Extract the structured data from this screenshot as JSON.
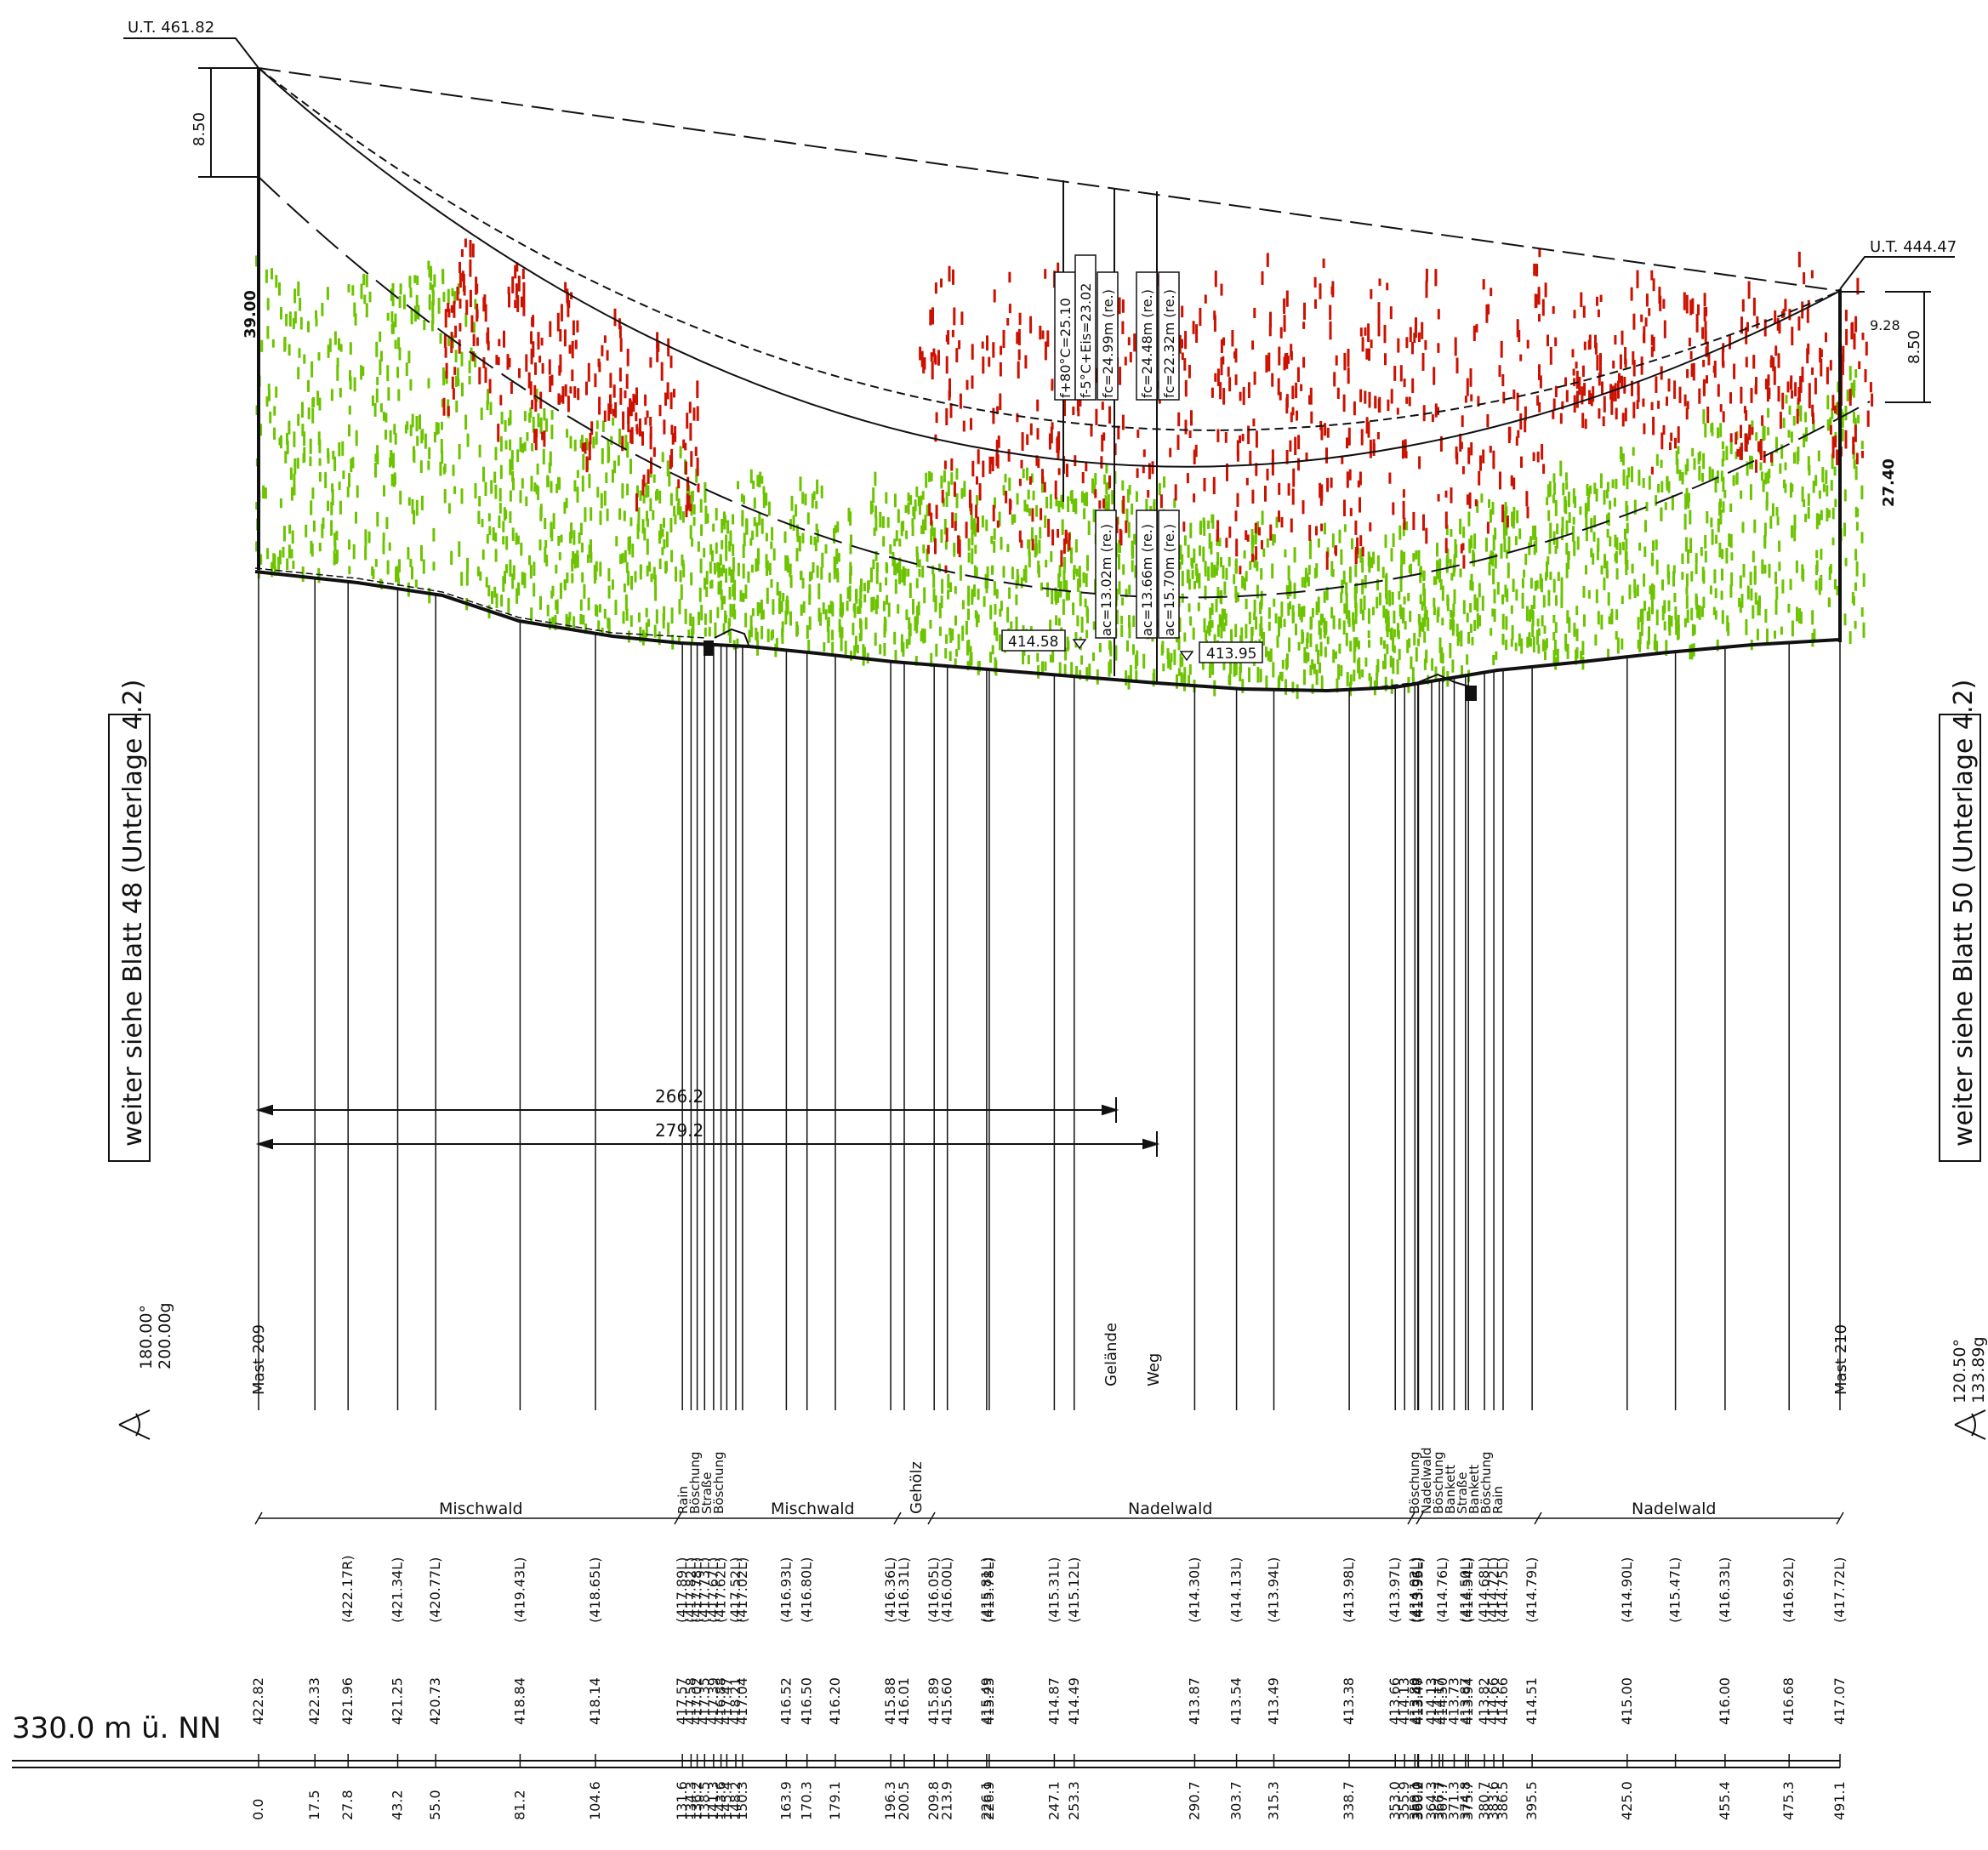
{
  "masts": {
    "left": {
      "label": "Mast 209",
      "ut_label": "U.T. 461.82",
      "height": "39.00",
      "offset": "8.50",
      "angle1": "180.00°",
      "angle2": "200.00g",
      "continue_note": "weiter siehe Blatt 48 (Unterlage 4.2)"
    },
    "right": {
      "label": "Mast 210",
      "ut_label": "U.T. 444.47",
      "height": "27.40",
      "offset": "8.50",
      "offset_small": "9.28",
      "angle1": "120.50°",
      "angle2": "133.89g",
      "continue_note": "weiter siehe Blatt 50 (Unterlage 4.2)"
    }
  },
  "sag_labels": {
    "f80": "f+80°C=25.10",
    "fice": "f-5°C+Eis=23.02",
    "fc_left": "fc=24.99m (re.)",
    "fc_mid": "fc=24.48m (re.)",
    "fc_right": "fc=22.32m (re.)",
    "ac1": "ac=13.02m (re.)",
    "ac2": "ac=13.66m (re.)",
    "ac3": "ac=15.70m (re.)"
  },
  "ground_markers": {
    "m1": "414.58",
    "m2": "413.95"
  },
  "dimensions": {
    "d1": "266.2",
    "d2": "279.2"
  },
  "vertical_labels": {
    "gelande": "Gelände",
    "weg": "Weg"
  },
  "datum": "330.0 m ü. NN",
  "landuse_sections": {
    "mischwald1": "Mischwald",
    "mischwald2": "Mischwald",
    "geholz": "Gehölz",
    "nadelwald1": "Nadelwald",
    "nadelwald2": "Nadelwald"
  },
  "feature_labels_left": [
    "Rain",
    "Böschung",
    "Straße",
    "Böschung"
  ],
  "feature_labels_right": [
    "Böschung",
    "Nadelwald",
    "Böschung",
    "Bankett",
    "Straße",
    "Bankett",
    "Böschung",
    "Rain"
  ],
  "stations": [
    {
      "x": "0.0",
      "h": "422.82",
      "hr": ""
    },
    {
      "x": "17.5",
      "h": "422.33",
      "hr": ""
    },
    {
      "x": "27.8",
      "h": "421.96",
      "hr": "(422.17R)"
    },
    {
      "x": "43.2",
      "h": "421.25",
      "hr": "(421.34L)"
    },
    {
      "x": "55.0",
      "h": "420.73",
      "hr": "(420.77L)"
    },
    {
      "x": "81.2",
      "h": "418.84",
      "hr": "(419.43L)"
    },
    {
      "x": "104.6",
      "h": "418.14",
      "hr": "(418.65L)"
    },
    {
      "x": "131.6",
      "h": "417.57",
      "hr": "(417.89L)"
    },
    {
      "x": "134.3",
      "h": "417.58",
      "hr": "(417.82L)"
    },
    {
      "x": "136.2",
      "h": "417.02",
      "hr": "(417.78L)"
    },
    {
      "x": "138.5",
      "h": "417.35",
      "hr": "(417.73L)"
    },
    {
      "x": "141.3",
      "h": "417.39",
      "hr": "(417.67L)"
    },
    {
      "x": "143.6",
      "h": "416.88",
      "hr": "(417.62L)"
    },
    {
      "x": "145.4",
      "h": "417.47",
      "hr": ""
    },
    {
      "x": "148.2",
      "h": "418.21",
      "hr": "(417.52L)"
    },
    {
      "x": "150.3",
      "h": "417.04",
      "hr": "(417.02L)"
    },
    {
      "x": "163.9",
      "h": "416.52",
      "hr": "(416.93L)"
    },
    {
      "x": "170.3",
      "h": "416.50",
      "hr": "(416.80L)"
    },
    {
      "x": "179.1",
      "h": "416.20",
      "hr": ""
    },
    {
      "x": "196.3",
      "h": "415.88",
      "hr": "(416.36L)"
    },
    {
      "x": "200.5",
      "h": "416.01",
      "hr": "(416.31L)"
    },
    {
      "x": "209.8",
      "h": "415.89",
      "hr": "(416.05L)"
    },
    {
      "x": "213.9",
      "h": "415.60",
      "hr": "(416.00L)"
    },
    {
      "x": "226.1",
      "h": "415.49",
      "hr": "(415.81L)"
    },
    {
      "x": "226.9",
      "h": "415.25",
      "hr": "(415.78L)"
    },
    {
      "x": "247.1",
      "h": "414.87",
      "hr": "(415.31L)"
    },
    {
      "x": "253.3",
      "h": "414.49",
      "hr": "(415.12L)"
    },
    {
      "x": "290.7",
      "h": "413.87",
      "hr": "(414.30L)"
    },
    {
      "x": "303.7",
      "h": "413.54",
      "hr": "(414.13L)"
    },
    {
      "x": "315.3",
      "h": "413.49",
      "hr": "(413.94L)"
    },
    {
      "x": "338.7",
      "h": "413.38",
      "hr": "(413.98L)"
    },
    {
      "x": "353.0",
      "h": "413.66",
      "hr": "(413.97L)"
    },
    {
      "x": "355.9",
      "h": "414.13",
      "hr": ""
    },
    {
      "x": "359.1",
      "h": "413.80",
      "hr": "(414.02L)"
    },
    {
      "x": "360.0",
      "h": "413.48",
      "hr": "(413.96L)"
    },
    {
      "x": "360.2",
      "h": "413.47",
      "hr": "(413.95L)"
    },
    {
      "x": "364.3",
      "h": "414.13",
      "hr": ""
    },
    {
      "x": "366.7",
      "h": "414.17",
      "hr": ""
    },
    {
      "x": "367.7",
      "h": "414.50",
      "hr": "(414.76L)"
    },
    {
      "x": "371.3",
      "h": "413.73",
      "hr": ""
    },
    {
      "x": "374.8",
      "h": "413.87",
      "hr": "(414.50L)"
    },
    {
      "x": "375.7",
      "h": "413.94",
      "hr": "(414.54L)"
    },
    {
      "x": "380.7",
      "h": "413.82",
      "hr": "(414.68L)"
    },
    {
      "x": "383.6",
      "h": "414.66",
      "hr": "(414.72L)"
    },
    {
      "x": "386.5",
      "h": "414.66",
      "hr": "(414.75L)"
    },
    {
      "x": "395.5",
      "h": "414.51",
      "hr": "(414.79L)"
    },
    {
      "x": "425.0",
      "h": "415.00",
      "hr": "(414.90L)"
    },
    {
      "x": "",
      "h": "",
      "hr": "(415.47L)"
    },
    {
      "x": "455.4",
      "h": "416.00",
      "hr": "(416.33L)"
    },
    {
      "x": "475.3",
      "h": "416.68",
      "hr": "(416.92L)"
    },
    {
      "x": "491.1",
      "h": "417.07",
      "hr": "(417.72L)"
    }
  ],
  "colors": {
    "low_vegetation": "#6cc400",
    "high_vegetation": "#cc1100",
    "line": "#111111"
  }
}
